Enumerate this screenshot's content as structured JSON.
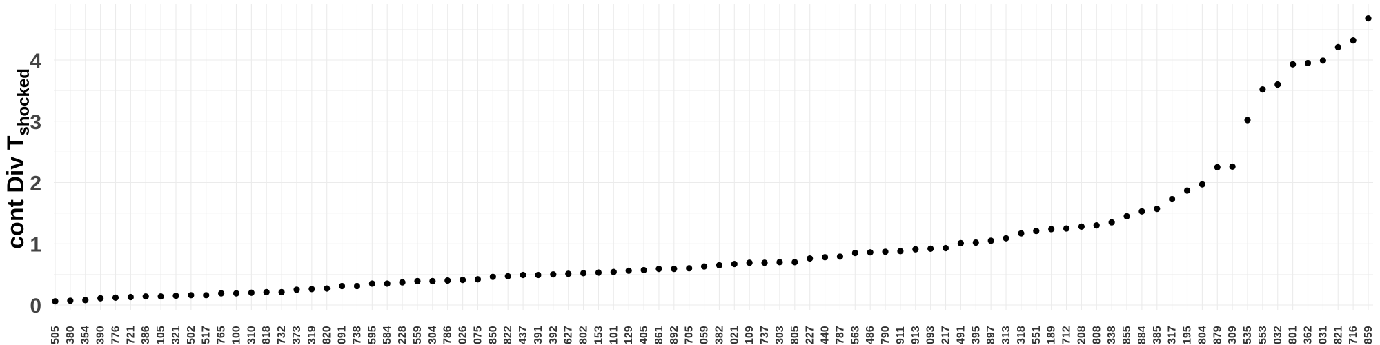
{
  "chart_data": {
    "type": "scatter",
    "ylabel": {
      "main": "cont Div T",
      "subscript": "shocked"
    },
    "xlabel": "",
    "ylim": [
      0,
      4.7
    ],
    "yticks": [
      0,
      1,
      2,
      3,
      4
    ],
    "grid": true,
    "legend": "none",
    "point_color": "#000000",
    "series": [
      {
        "categories": [
          "505",
          "380",
          "354",
          "390",
          "776",
          "721",
          "386",
          "105",
          "321",
          "502",
          "517",
          "765",
          "100",
          "310",
          "818",
          "732",
          "373",
          "319",
          "820",
          "091",
          "738",
          "595",
          "584",
          "228",
          "559",
          "304",
          "786",
          "026",
          "075",
          "850",
          "822",
          "437",
          "391",
          "392",
          "627",
          "802",
          "153",
          "101",
          "129",
          "405",
          "861",
          "892",
          "705",
          "059",
          "382",
          "021",
          "109",
          "737",
          "303",
          "805",
          "227",
          "440",
          "787",
          "563",
          "486",
          "790",
          "911",
          "913",
          "093",
          "217",
          "491",
          "395",
          "897",
          "313",
          "318",
          "551",
          "189",
          "712",
          "208",
          "808",
          "338",
          "855",
          "884",
          "385",
          "317",
          "195",
          "804",
          "879",
          "309",
          "535",
          "553",
          "032",
          "801",
          "362",
          "031",
          "821",
          "716",
          "859"
        ],
        "values": [
          0.06,
          0.07,
          0.08,
          0.11,
          0.12,
          0.13,
          0.14,
          0.14,
          0.15,
          0.16,
          0.16,
          0.19,
          0.19,
          0.2,
          0.21,
          0.21,
          0.25,
          0.26,
          0.27,
          0.31,
          0.31,
          0.35,
          0.35,
          0.37,
          0.39,
          0.39,
          0.4,
          0.41,
          0.42,
          0.46,
          0.47,
          0.49,
          0.49,
          0.5,
          0.51,
          0.52,
          0.53,
          0.54,
          0.56,
          0.57,
          0.59,
          0.59,
          0.6,
          0.63,
          0.65,
          0.67,
          0.69,
          0.69,
          0.7,
          0.7,
          0.76,
          0.78,
          0.79,
          0.85,
          0.86,
          0.87,
          0.88,
          0.91,
          0.92,
          0.93,
          1.01,
          1.02,
          1.05,
          1.09,
          1.17,
          1.21,
          1.24,
          1.25,
          1.28,
          1.3,
          1.35,
          1.45,
          1.53,
          1.57,
          1.73,
          1.87,
          1.97,
          2.25,
          2.26,
          3.02,
          3.52,
          3.6,
          3.93,
          3.95,
          3.99,
          4.21,
          4.32,
          4.68
        ]
      }
    ]
  }
}
